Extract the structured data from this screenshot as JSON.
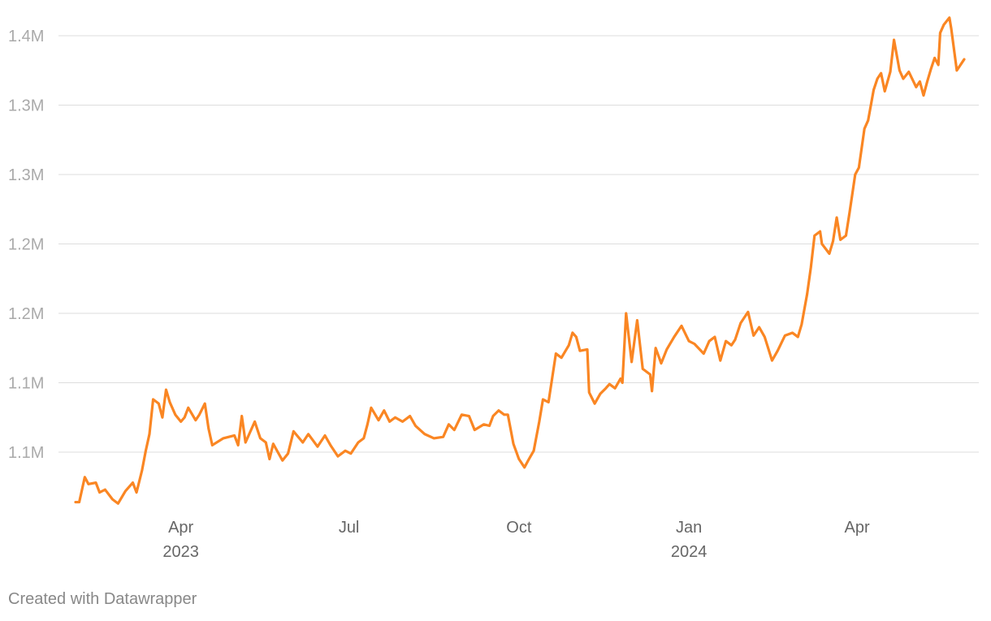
{
  "chart_data": {
    "type": "line",
    "credit": "Created with Datawrapper",
    "color": "#fa8623",
    "grid": true,
    "ylim": [
      1050000,
      1415000
    ],
    "yticks": [
      {
        "value": 1100000,
        "label": "1.1M"
      },
      {
        "value": 1150000,
        "label": "1.1M"
      },
      {
        "value": 1200000,
        "label": "1.2M"
      },
      {
        "value": 1250000,
        "label": "1.2M"
      },
      {
        "value": 1300000,
        "label": "1.3M"
      },
      {
        "value": 1350000,
        "label": "1.3M"
      },
      {
        "value": 1400000,
        "label": "1.4M"
      }
    ],
    "xlim": [
      "2023-02-03",
      "2024-05-29"
    ],
    "xticks": [
      {
        "value": "2023-04-01",
        "label": "Apr"
      },
      {
        "value": "2023-07-01",
        "label": "Jul"
      },
      {
        "value": "2023-10-01",
        "label": "Oct"
      },
      {
        "value": "2024-01-01",
        "label": "Jan"
      },
      {
        "value": "2024-04-01",
        "label": "Apr"
      }
    ],
    "xtick_years": [
      {
        "value": "2023-04-01",
        "label": "2023"
      },
      {
        "value": "2024-01-01",
        "label": "2024"
      }
    ],
    "x": [
      "2023-02-03",
      "2023-02-05",
      "2023-02-08",
      "2023-02-10",
      "2023-02-14",
      "2023-02-16",
      "2023-02-19",
      "2023-02-23",
      "2023-02-26",
      "2023-03-02",
      "2023-03-06",
      "2023-03-08",
      "2023-03-11",
      "2023-03-13",
      "2023-03-15",
      "2023-03-17",
      "2023-03-20",
      "2023-03-22",
      "2023-03-24",
      "2023-03-26",
      "2023-03-29",
      "2023-04-01",
      "2023-04-03",
      "2023-04-05",
      "2023-04-09",
      "2023-04-11",
      "2023-04-14",
      "2023-04-16",
      "2023-04-18",
      "2023-04-24",
      "2023-04-30",
      "2023-05-02",
      "2023-05-04",
      "2023-05-06",
      "2023-05-11",
      "2023-05-14",
      "2023-05-17",
      "2023-05-19",
      "2023-05-21",
      "2023-05-26",
      "2023-05-29",
      "2023-06-01",
      "2023-06-06",
      "2023-06-09",
      "2023-06-14",
      "2023-06-18",
      "2023-06-21",
      "2023-06-25",
      "2023-06-29",
      "2023-07-02",
      "2023-07-06",
      "2023-07-09",
      "2023-07-11",
      "2023-07-13",
      "2023-07-17",
      "2023-07-20",
      "2023-07-23",
      "2023-07-26",
      "2023-07-30",
      "2023-08-03",
      "2023-08-06",
      "2023-08-11",
      "2023-08-16",
      "2023-08-21",
      "2023-08-24",
      "2023-08-27",
      "2023-08-31",
      "2023-09-04",
      "2023-09-07",
      "2023-09-12",
      "2023-09-15",
      "2023-09-17",
      "2023-09-20",
      "2023-09-23",
      "2023-09-25",
      "2023-09-28",
      "2023-10-01",
      "2023-10-04",
      "2023-10-06",
      "2023-10-09",
      "2023-10-12",
      "2023-10-14",
      "2023-10-17",
      "2023-10-21",
      "2023-10-24",
      "2023-10-28",
      "2023-10-30",
      "2023-11-01",
      "2023-11-03",
      "2023-11-07",
      "2023-11-08",
      "2023-11-11",
      "2023-11-14",
      "2023-11-17",
      "2023-11-19",
      "2023-11-22",
      "2023-11-25",
      "2023-11-26",
      "2023-11-28",
      "2023-12-01",
      "2023-12-04",
      "2023-12-07",
      "2023-12-11",
      "2023-12-12",
      "2023-12-14",
      "2023-12-17",
      "2023-12-20",
      "2023-12-24",
      "2023-12-28",
      "2024-01-01",
      "2024-01-04",
      "2024-01-09",
      "2024-01-12",
      "2024-01-15",
      "2024-01-18",
      "2024-01-21",
      "2024-01-24",
      "2024-01-26",
      "2024-01-29",
      "2024-02-02",
      "2024-02-05",
      "2024-02-08",
      "2024-02-11",
      "2024-02-15",
      "2024-02-18",
      "2024-02-22",
      "2024-02-26",
      "2024-02-29",
      "2024-03-02",
      "2024-03-05",
      "2024-03-07",
      "2024-03-09",
      "2024-03-12",
      "2024-03-13",
      "2024-03-17",
      "2024-03-19",
      "2024-03-21",
      "2024-03-23",
      "2024-03-26",
      "2024-03-28",
      "2024-03-31",
      "2024-04-02",
      "2024-04-05",
      "2024-04-07",
      "2024-04-10",
      "2024-04-12",
      "2024-04-14",
      "2024-04-16",
      "2024-04-19",
      "2024-04-21",
      "2024-04-24",
      "2024-04-26",
      "2024-04-29",
      "2024-05-03",
      "2024-05-05",
      "2024-05-07",
      "2024-05-09",
      "2024-05-11",
      "2024-05-13",
      "2024-05-15",
      "2024-05-16",
      "2024-05-18",
      "2024-05-21",
      "2024-05-22",
      "2024-05-25",
      "2024-05-29"
    ],
    "values": [
      1064000,
      1064000,
      1082000,
      1077000,
      1078000,
      1071000,
      1073000,
      1066000,
      1063000,
      1072000,
      1078000,
      1071000,
      1087000,
      1101000,
      1113000,
      1138000,
      1135000,
      1125000,
      1145000,
      1136000,
      1127000,
      1122000,
      1125000,
      1132000,
      1123000,
      1127000,
      1135000,
      1117000,
      1105000,
      1110000,
      1112000,
      1105000,
      1126000,
      1107000,
      1122000,
      1110000,
      1107000,
      1095000,
      1106000,
      1094000,
      1099000,
      1115000,
      1107000,
      1113000,
      1104000,
      1112000,
      1105000,
      1097000,
      1101000,
      1099000,
      1107000,
      1110000,
      1120000,
      1132000,
      1123000,
      1130000,
      1122000,
      1125000,
      1122000,
      1126000,
      1119000,
      1113000,
      1110000,
      1111000,
      1120000,
      1116000,
      1127000,
      1126000,
      1116000,
      1120000,
      1119000,
      1126000,
      1130000,
      1127000,
      1127000,
      1106000,
      1095000,
      1089000,
      1094000,
      1101000,
      1122000,
      1138000,
      1136000,
      1171000,
      1168000,
      1177000,
      1186000,
      1183000,
      1173000,
      1174000,
      1143000,
      1135000,
      1142000,
      1146000,
      1149000,
      1146000,
      1153000,
      1150000,
      1200000,
      1165000,
      1195000,
      1160000,
      1156000,
      1144000,
      1175000,
      1164000,
      1174000,
      1183000,
      1191000,
      1180000,
      1178000,
      1171000,
      1180000,
      1183000,
      1166000,
      1180000,
      1177000,
      1181000,
      1193000,
      1201000,
      1184000,
      1190000,
      1183000,
      1166000,
      1173000,
      1184000,
      1186000,
      1183000,
      1192000,
      1214000,
      1233000,
      1256000,
      1259000,
      1250000,
      1243000,
      1252000,
      1269000,
      1253000,
      1256000,
      1273000,
      1300000,
      1305000,
      1333000,
      1339000,
      1361000,
      1369000,
      1373000,
      1360000,
      1374000,
      1397000,
      1375000,
      1369000,
      1374000,
      1363000,
      1367000,
      1357000,
      1367000,
      1376000,
      1384000,
      1379000,
      1402000,
      1408000,
      1413000,
      1405000,
      1375000,
      1383000
    ]
  }
}
